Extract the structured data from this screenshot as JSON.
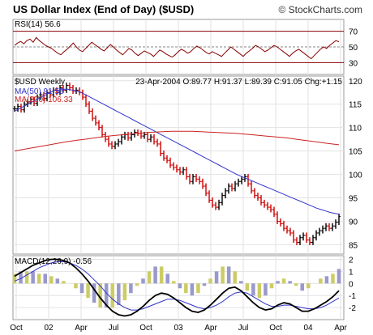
{
  "header": {
    "title": "US Dollar Index (End of Day) ($USD)",
    "copyright": "© StockCharts.com"
  },
  "colors": {
    "price_up": "#000000",
    "price_down": "#cc0000",
    "ma50": "#3333cc",
    "ma200": "#cc2222",
    "rsi_line": "#880000",
    "macd_line": "#000000",
    "macd_signal": "#3333cc",
    "histogram": "#9999cc",
    "histogram_hi": "#cccc66"
  },
  "chart_data": [
    {
      "type": "line",
      "panel": "rsi",
      "label": "RSI(14) 56.6",
      "levels": [
        70,
        50,
        30
      ],
      "ylim": [
        15,
        85
      ],
      "series": [
        {
          "values": [
            52,
            55,
            57,
            54,
            58,
            60,
            56,
            62,
            58,
            55,
            52,
            50,
            48,
            45,
            42,
            40,
            44,
            47,
            51,
            55,
            50,
            46,
            44,
            48,
            52,
            56,
            53,
            50,
            47,
            45,
            49,
            53,
            50,
            46,
            43,
            40,
            44,
            48,
            46,
            42,
            39,
            42,
            45,
            43,
            41,
            38,
            42,
            46,
            44,
            41,
            39,
            37,
            40,
            44,
            47,
            45,
            42,
            44,
            48,
            51,
            49,
            46,
            43,
            41,
            44,
            42,
            40,
            38,
            42,
            46,
            50,
            47,
            44,
            41,
            38,
            42,
            45,
            48,
            52,
            50,
            47,
            44,
            46,
            49,
            52,
            50,
            47,
            44,
            41,
            38,
            42,
            45,
            47,
            44,
            41,
            38,
            35,
            39,
            43,
            47,
            50,
            48,
            52,
            55,
            58,
            56.6
          ]
        }
      ]
    },
    {
      "type": "line",
      "panel": "price",
      "label": "$USD Weekly",
      "quote": "23-Apr-2004 O:89.77 H:91.37 L:89.39 C:91.05 Chg:+1.15",
      "ylim": [
        83,
        121
      ],
      "yticks": [
        85,
        90,
        95,
        100,
        105,
        110,
        115,
        120
      ],
      "xticks": [
        "Oct",
        "02",
        "Apr",
        "Jul",
        "Oct",
        "03",
        "Apr",
        "Jul",
        "Oct",
        "04",
        "Apr"
      ],
      "series": [
        {
          "name": "$USD",
          "values": [
            114,
            114.5,
            113.8,
            115,
            115.5,
            116,
            115.2,
            116.5,
            117,
            116.2,
            117.5,
            117,
            118,
            117.5,
            118.5,
            118,
            119,
            118.5,
            117.8,
            118,
            117.5,
            116.5,
            115,
            113.5,
            112,
            111,
            110,
            108.5,
            107.5,
            106.5,
            106,
            106.5,
            107,
            108,
            108.5,
            107.8,
            108.5,
            109,
            108.8,
            108.2,
            108.5,
            107.5,
            108,
            107,
            106.5,
            104.5,
            103.5,
            103,
            102,
            101.5,
            101,
            100.5,
            101,
            99.5,
            98.5,
            99.5,
            99,
            98.5,
            97.5,
            96,
            94.5,
            93.5,
            93,
            94,
            95.5,
            96.5,
            97.5,
            97,
            98,
            98.5,
            99,
            99.5,
            98,
            96.5,
            95.5,
            95,
            94,
            93.5,
            93,
            92.5,
            91.5,
            90,
            89.5,
            88.5,
            88,
            87.5,
            86,
            85.5,
            86.5,
            87,
            86,
            85.5,
            86.5,
            87.5,
            88,
            88.5,
            89,
            88.5,
            89,
            89.8,
            91.05
          ]
        },
        {
          "name": "MA(50) 91.53",
          "values": [
            113.5,
            114,
            114.5,
            115,
            115.5,
            116,
            116.5,
            117,
            117.5,
            118,
            118,
            118.2,
            118.2,
            118,
            117.8,
            117.5,
            117,
            116.5,
            116,
            115.5,
            115,
            114.5,
            114,
            113.5,
            113,
            112.5,
            112,
            111.5,
            111,
            110.5,
            110,
            109.5,
            109,
            108.5,
            108,
            107.5,
            107,
            106.5,
            106,
            105.5,
            105,
            104.5,
            104,
            103.5,
            103,
            102.5,
            102,
            101.5,
            101,
            100.5,
            100,
            99.6,
            99.2,
            98.8,
            98.4,
            98,
            97.6,
            97.2,
            96.8,
            96.4,
            96,
            95.6,
            95.2,
            94.8,
            94.4,
            94,
            93.6,
            93.2,
            92.8,
            92.5,
            92.2,
            91.9,
            91.7,
            91.53
          ]
        },
        {
          "name": "MA(200) 106.33",
          "values": [
            105,
            105.4,
            105.8,
            106.2,
            106.6,
            107,
            107.3,
            107.6,
            107.9,
            108.2,
            108.4,
            108.6,
            108.8,
            109,
            109.1,
            109.2,
            109.2,
            109.2,
            109.1,
            109,
            108.9,
            108.8,
            108.6,
            108.4,
            108.2,
            108,
            107.8,
            107.5,
            107.2,
            106.9,
            106.6,
            106.33
          ]
        }
      ]
    },
    {
      "type": "line",
      "panel": "macd",
      "label": "MACD(12,26,9) -0.56",
      "ylim": [
        -3,
        2.3
      ],
      "yticks": [
        2,
        1,
        0,
        -1,
        -2
      ],
      "series": [
        {
          "name": "MACD",
          "values": [
            0.6,
            0.9,
            1.2,
            1.5,
            1.7,
            1.9,
            2.0,
            2.0,
            1.9,
            1.7,
            1.3,
            0.8,
            0.2,
            -0.5,
            -1.2,
            -1.8,
            -2.3,
            -2.6,
            -2.7,
            -2.6,
            -2.3,
            -1.9,
            -1.4,
            -1.0,
            -0.8,
            -0.9,
            -1.2,
            -1.6,
            -2.0,
            -2.3,
            -2.4,
            -2.2,
            -1.8,
            -1.3,
            -0.8,
            -0.4,
            -0.3,
            -0.6,
            -1.1,
            -1.6,
            -2.0,
            -2.2,
            -2.1,
            -1.8,
            -1.6,
            -1.7,
            -2.0,
            -2.3,
            -2.3,
            -2.1,
            -1.8,
            -1.5,
            -1.1,
            -0.6
          ]
        },
        {
          "name": "Signal",
          "values": [
            0.2,
            0.4,
            0.7,
            1.0,
            1.3,
            1.5,
            1.7,
            1.8,
            1.8,
            1.7,
            1.5,
            1.2,
            0.8,
            0.3,
            -0.2,
            -0.8,
            -1.3,
            -1.7,
            -2.0,
            -2.2,
            -2.2,
            -2.1,
            -1.9,
            -1.7,
            -1.5,
            -1.3,
            -1.3,
            -1.4,
            -1.6,
            -1.8,
            -2.0,
            -2.1,
            -2.0,
            -1.8,
            -1.5,
            -1.1,
            -0.8,
            -0.7,
            -0.8,
            -1.1,
            -1.4,
            -1.7,
            -1.9,
            -1.9,
            -1.8,
            -1.8,
            -1.9,
            -2.0,
            -2.1,
            -2.1,
            -2.0,
            -1.8,
            -1.5,
            -1.2
          ]
        }
      ]
    }
  ]
}
